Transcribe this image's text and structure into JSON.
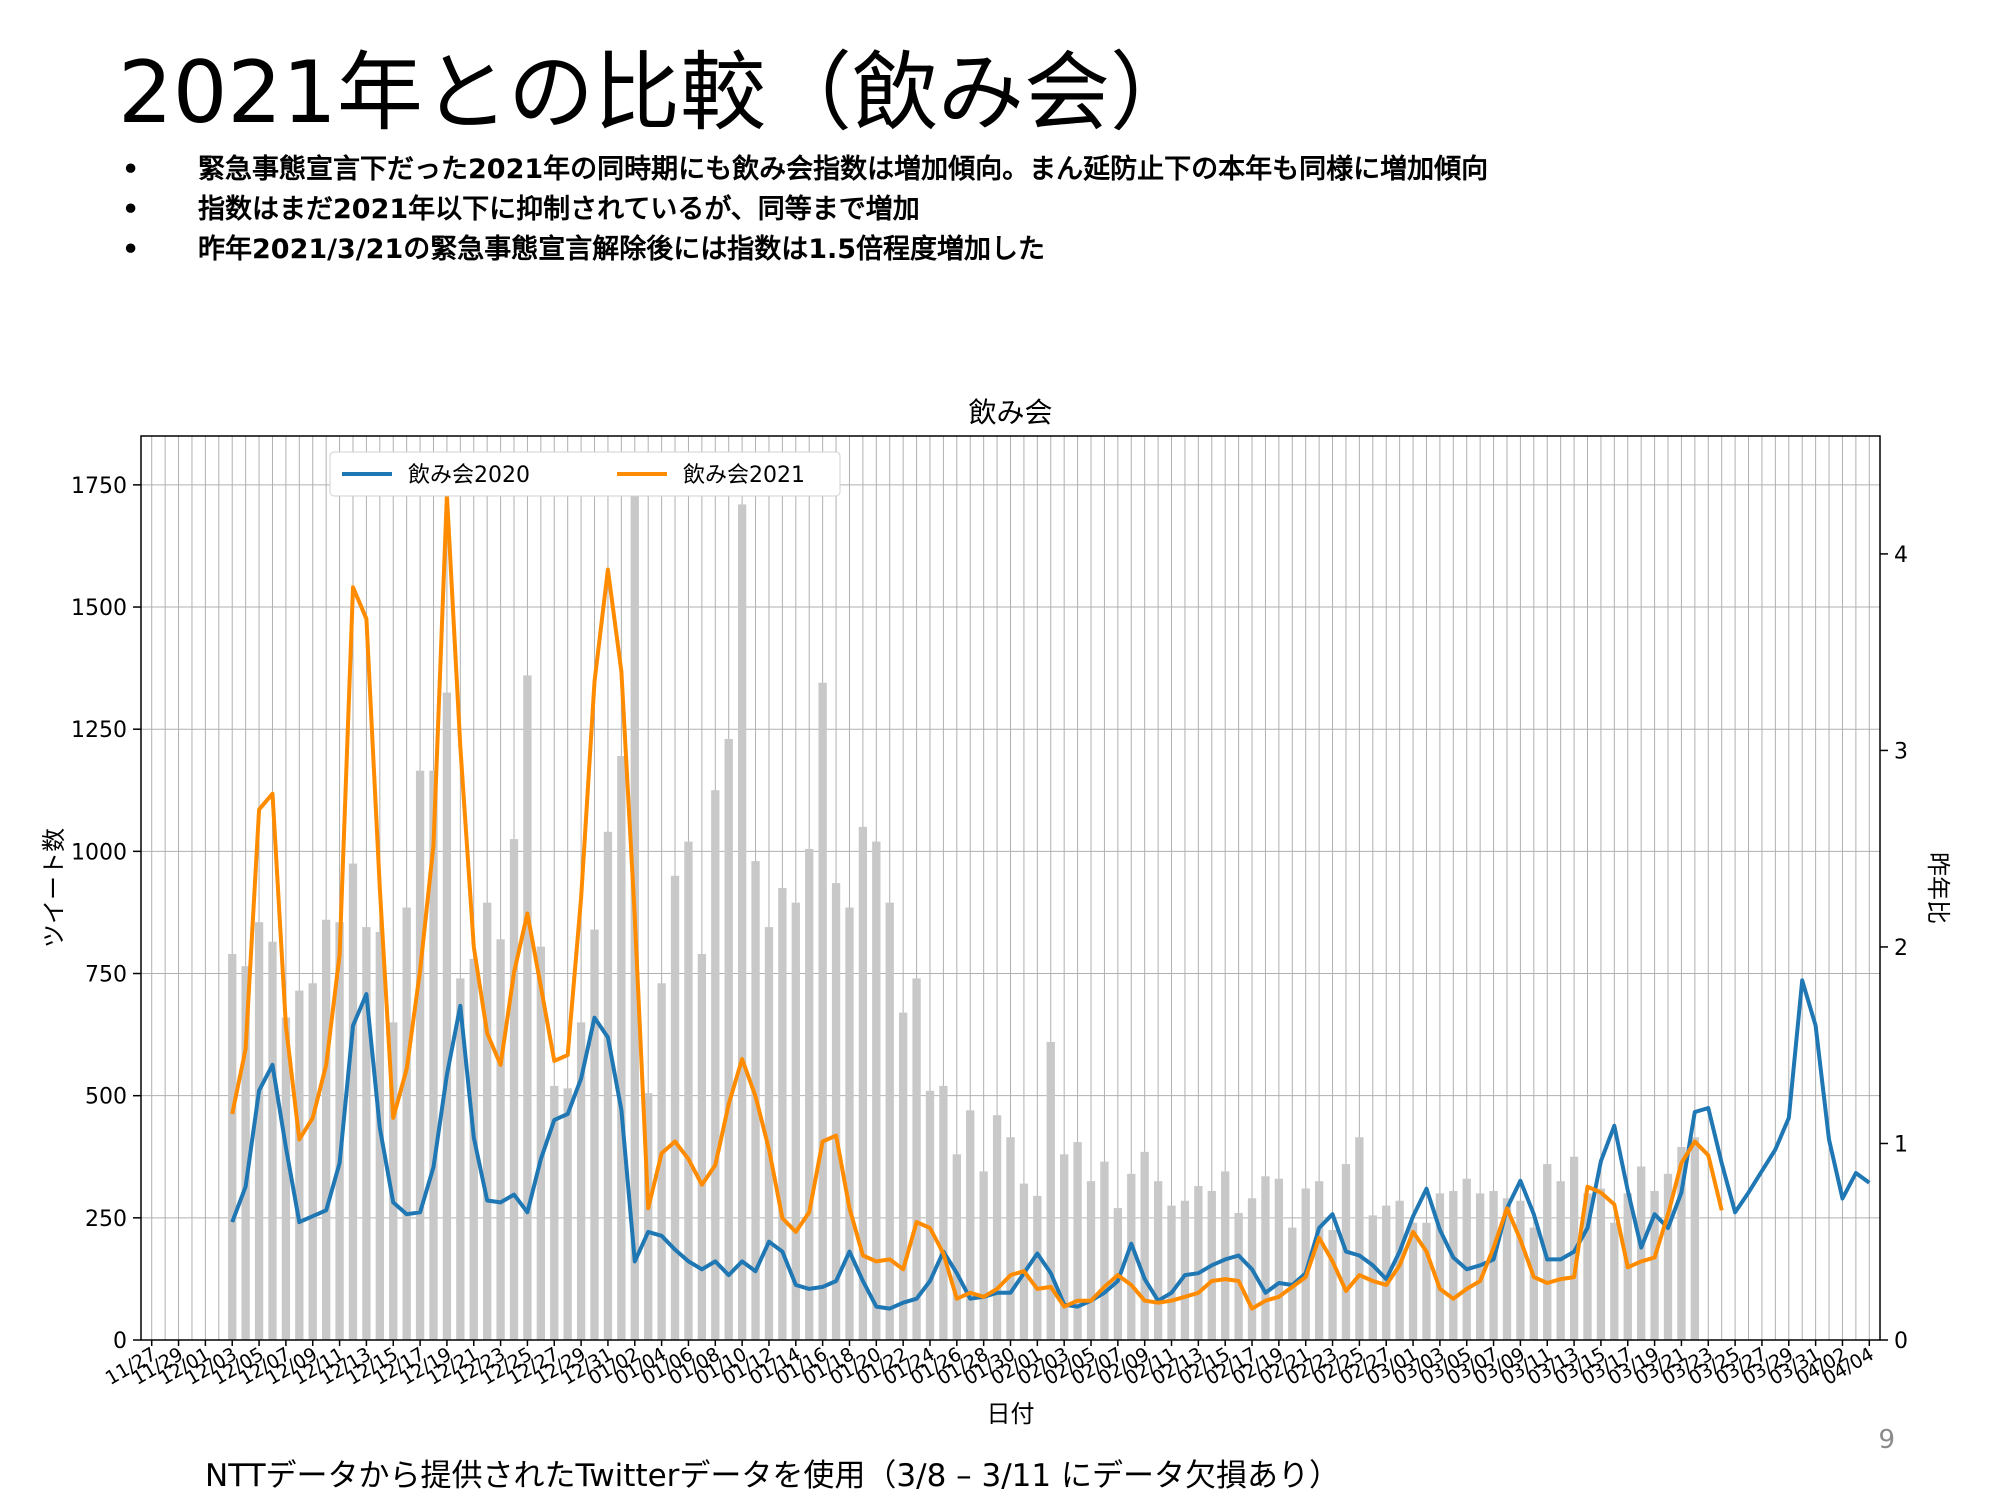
{
  "title": "2021年との比較（飲み会）",
  "bullets": [
    "緊急事態宣言下だった2021年の同時期にも飲み会指数は増加傾向。まん延防止下の本年も同様に増加傾向",
    "指数はまだ2021年以下に抑制されているが、同等まで増加",
    "昨年2021/3/21の緊急事態宣言解除後には指数は1.5倍程度増加した"
  ],
  "bullet_symbol": "•",
  "page_number": "9",
  "footnote": "NTTデータから提供されたTwitterデータを使用（3/8 – 3/11 にデータ欠損あり）",
  "chart_data": {
    "type": "bar+line",
    "title": "飲み会",
    "xlabel": "日付",
    "ylabel": "ツイート数",
    "y2label": "昨年比",
    "ylim": [
      0,
      1850
    ],
    "y2lim": [
      0,
      4.6
    ],
    "yticks": [
      0,
      250,
      500,
      750,
      1000,
      1250,
      1500,
      1750
    ],
    "y2ticks": [
      0,
      1,
      2,
      3,
      4
    ],
    "grid": true,
    "legend_position": "top-left",
    "x_ticklabels": [
      "11/27",
      "11/29",
      "12/01",
      "12/03",
      "12/05",
      "12/07",
      "12/09",
      "12/11",
      "12/13",
      "12/15",
      "12/17",
      "12/19",
      "12/21",
      "12/23",
      "12/25",
      "12/27",
      "12/29",
      "12/31",
      "01/02",
      "01/04",
      "01/06",
      "01/08",
      "01/10",
      "01/12",
      "01/14",
      "01/16",
      "01/18",
      "01/20",
      "01/22",
      "01/24",
      "01/26",
      "01/28",
      "01/30",
      "02/01",
      "02/03",
      "02/05",
      "02/07",
      "02/09",
      "02/11",
      "02/13",
      "02/15",
      "02/17",
      "02/19",
      "02/21",
      "02/23",
      "02/25",
      "02/27",
      "03/01",
      "03/03",
      "03/05",
      "03/07",
      "03/09",
      "03/11",
      "03/13",
      "03/15",
      "03/17",
      "03/19",
      "03/21",
      "03/23",
      "03/25",
      "03/27",
      "03/29",
      "03/31",
      "04/02",
      "04/04"
    ],
    "bars": {
      "name": "ツイート数",
      "color": "#c8c8c8",
      "start_index": 6,
      "values": [
        790,
        765,
        855,
        815,
        660,
        715,
        730,
        860,
        855,
        975,
        845,
        835,
        650,
        885,
        1165,
        1165,
        1325,
        740,
        780,
        895,
        820,
        1025,
        1360,
        805,
        520,
        515,
        650,
        840,
        1040,
        1195,
        1740,
        505,
        730,
        950,
        1020,
        790,
        1125,
        1230,
        1710,
        980,
        845,
        925,
        895,
        1005,
        1345,
        935,
        885,
        1050,
        1020,
        895,
        670,
        740,
        510,
        520,
        380,
        470,
        345,
        460,
        415,
        320,
        295,
        610,
        380,
        405,
        325,
        365,
        270,
        340,
        385,
        325,
        275,
        285,
        315,
        305,
        345,
        260,
        290,
        335,
        330,
        230,
        310,
        325,
        225,
        360,
        415,
        255,
        275,
        285,
        240,
        240,
        300,
        305,
        330,
        300,
        305,
        290,
        285,
        230,
        360,
        325,
        375,
        300,
        310,
        240,
        300,
        355,
        305,
        340,
        395,
        415
      ]
    },
    "series": [
      {
        "name": "飲み会2020",
        "color": "#1f77b4",
        "start_index": 6,
        "values": [
          0.6,
          0.78,
          1.27,
          1.4,
          0.98,
          0.6,
          0.63,
          0.66,
          0.9,
          1.6,
          1.76,
          1.08,
          0.7,
          0.64,
          0.65,
          0.88,
          1.35,
          1.7,
          1.03,
          0.71,
          0.7,
          0.74,
          0.65,
          0.92,
          1.12,
          1.15,
          1.33,
          1.64,
          1.54,
          1.17,
          0.4,
          0.55,
          0.53,
          0.46,
          0.4,
          0.36,
          0.4,
          0.33,
          0.4,
          0.35,
          0.5,
          0.45,
          0.28,
          0.26,
          0.27,
          0.3,
          0.45,
          0.3,
          0.17,
          0.16,
          0.19,
          0.21,
          0.3,
          0.45,
          0.34,
          0.21,
          0.22,
          0.24,
          0.24,
          0.34,
          0.44,
          0.34,
          0.18,
          0.17,
          0.2,
          0.24,
          0.3,
          0.49,
          0.31,
          0.2,
          0.24,
          0.33,
          0.34,
          0.38,
          0.41,
          0.43,
          0.36,
          0.24,
          0.29,
          0.28,
          0.34,
          0.57,
          0.64,
          0.45,
          0.43,
          0.38,
          0.31,
          0.45,
          0.63,
          0.77,
          0.56,
          0.42,
          0.36,
          0.38,
          0.41,
          0.67,
          0.81,
          0.64,
          0.41,
          0.41,
          0.45,
          0.57,
          0.91,
          1.09,
          0.76,
          0.47,
          0.64,
          0.57,
          0.75,
          1.16,
          1.18,
          0.9,
          0.65,
          0.75,
          0.86,
          0.97,
          1.13,
          1.83,
          1.6,
          1.02,
          0.72,
          0.85,
          0.8
        ]
      },
      {
        "name": "飲み会2021",
        "color": "#ff8c00",
        "start_index": 6,
        "values": [
          1.15,
          1.48,
          2.7,
          2.78,
          1.6,
          1.02,
          1.13,
          1.4,
          1.96,
          3.83,
          3.67,
          2.3,
          1.13,
          1.38,
          1.88,
          2.52,
          4.3,
          3.02,
          2.0,
          1.56,
          1.4,
          1.87,
          2.17,
          1.8,
          1.42,
          1.45,
          2.25,
          3.35,
          3.92,
          3.4,
          2.15,
          0.67,
          0.95,
          1.01,
          0.92,
          0.79,
          0.89,
          1.2,
          1.43,
          1.24,
          0.97,
          0.62,
          0.55,
          0.65,
          1.01,
          1.04,
          0.67,
          0.43,
          0.4,
          0.41,
          0.36,
          0.6,
          0.57,
          0.44,
          0.21,
          0.24,
          0.22,
          0.26,
          0.33,
          0.35,
          0.26,
          0.27,
          0.17,
          0.2,
          0.2,
          0.27,
          0.33,
          0.28,
          0.2,
          0.19,
          0.2,
          0.22,
          0.24,
          0.3,
          0.31,
          0.3,
          0.16,
          0.2,
          0.22,
          0.27,
          0.32,
          0.52,
          0.4,
          0.25,
          0.33,
          0.3,
          0.28,
          0.38,
          0.55,
          0.45,
          0.26,
          0.21,
          0.26,
          0.3,
          0.47,
          0.67,
          0.51,
          0.32,
          0.29,
          0.31,
          0.32,
          0.78,
          0.75,
          0.69,
          0.37,
          0.4,
          0.42,
          0.64,
          0.9,
          1.01,
          0.94,
          0.66
        ]
      }
    ]
  }
}
